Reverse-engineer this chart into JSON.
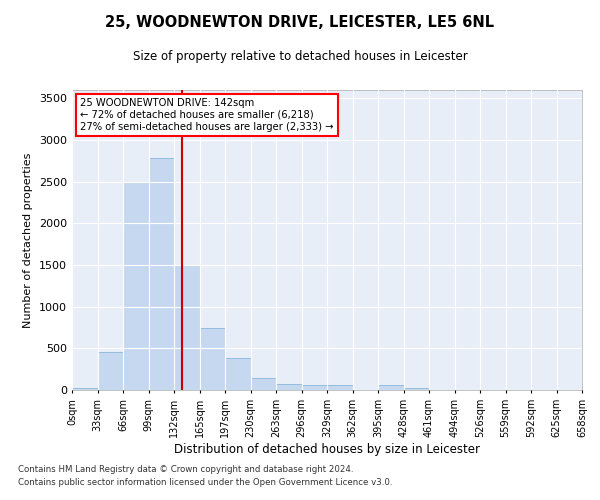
{
  "title": "25, WOODNEWTON DRIVE, LEICESTER, LE5 6NL",
  "subtitle": "Size of property relative to detached houses in Leicester",
  "xlabel": "Distribution of detached houses by size in Leicester",
  "ylabel": "Number of detached properties",
  "bar_color": "#c5d8f0",
  "bar_edge_color": "#7aadd4",
  "background_color": "#e8eef8",
  "grid_color": "#ffffff",
  "vline_color": "#cc0000",
  "vline_x": 142,
  "bin_width": 33,
  "bin_starts": [
    0,
    33,
    66,
    99,
    132,
    165,
    198,
    231,
    264,
    297,
    330,
    363,
    396,
    429,
    462,
    495,
    528,
    561,
    594,
    627
  ],
  "bar_heights": [
    20,
    460,
    2500,
    2780,
    1500,
    740,
    390,
    140,
    70,
    55,
    55,
    0,
    55,
    20,
    0,
    0,
    0,
    0,
    0,
    0
  ],
  "ylim": [
    0,
    3600
  ],
  "yticks": [
    0,
    500,
    1000,
    1500,
    2000,
    2500,
    3000,
    3500
  ],
  "annotation_text": "25 WOODNEWTON DRIVE: 142sqm\n← 72% of detached houses are smaller (6,218)\n27% of semi-detached houses are larger (2,333) →",
  "footnote1": "Contains HM Land Registry data © Crown copyright and database right 2024.",
  "footnote2": "Contains public sector information licensed under the Open Government Licence v3.0.",
  "tick_labels": [
    "0sqm",
    "33sqm",
    "66sqm",
    "99sqm",
    "132sqm",
    "165sqm",
    "197sqm",
    "230sqm",
    "263sqm",
    "296sqm",
    "329sqm",
    "362sqm",
    "395sqm",
    "428sqm",
    "461sqm",
    "494sqm",
    "526sqm",
    "559sqm",
    "592sqm",
    "625sqm",
    "658sqm"
  ]
}
